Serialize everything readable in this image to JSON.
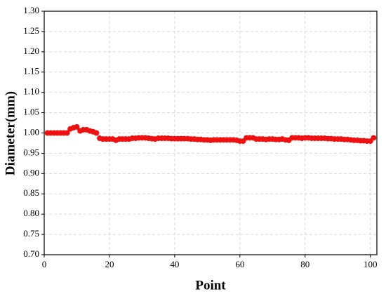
{
  "chart_data": {
    "type": "scatter",
    "x_label": "Point",
    "y_label": "Diameter(mm)",
    "xlim": [
      0,
      102
    ],
    "xticks": [
      0,
      20,
      40,
      60,
      80,
      100
    ],
    "ylim": [
      0.7,
      1.3
    ],
    "yticks": [
      {
        "value": 0.7,
        "label": "0.70"
      },
      0.75,
      {
        "value": 0.8,
        "label": "0.80"
      },
      0.85,
      {
        "value": 0.9,
        "label": "0.90"
      },
      0.95,
      {
        "value": 1.0,
        "label": "1.00"
      },
      1.05,
      {
        "value": 1.1,
        "label": "1.10"
      },
      1.15,
      {
        "value": 1.2,
        "label": "1.20"
      },
      1.25,
      {
        "value": 1.3,
        "label": "1.30"
      }
    ],
    "grid": true,
    "color": "#ee1111",
    "x": [
      1,
      2,
      3,
      4,
      5,
      6,
      7,
      8,
      9,
      10,
      11,
      12,
      13,
      14,
      15,
      16,
      17,
      18,
      19,
      20,
      21,
      22,
      23,
      24,
      25,
      26,
      27,
      28,
      29,
      30,
      31,
      32,
      33,
      34,
      35,
      36,
      37,
      38,
      39,
      40,
      41,
      42,
      43,
      44,
      45,
      46,
      47,
      48,
      49,
      50,
      51,
      52,
      53,
      54,
      55,
      56,
      57,
      58,
      59,
      60,
      61,
      62,
      63,
      64,
      65,
      66,
      67,
      68,
      69,
      70,
      71,
      72,
      73,
      74,
      75,
      76,
      77,
      78,
      79,
      80,
      81,
      82,
      83,
      84,
      85,
      86,
      87,
      88,
      89,
      90,
      91,
      92,
      93,
      94,
      95,
      96,
      97,
      98,
      99,
      100,
      101
    ],
    "values": [
      1.0,
      1.0,
      1.0,
      1.0,
      1.0,
      1.0,
      1.0,
      1.01,
      1.013,
      1.015,
      1.005,
      1.008,
      1.008,
      1.005,
      1.003,
      1.0,
      0.987,
      0.985,
      0.985,
      0.985,
      0.985,
      0.982,
      0.985,
      0.985,
      0.985,
      0.985,
      0.987,
      0.987,
      0.988,
      0.988,
      0.988,
      0.987,
      0.986,
      0.985,
      0.987,
      0.987,
      0.987,
      0.987,
      0.986,
      0.986,
      0.986,
      0.986,
      0.986,
      0.986,
      0.985,
      0.985,
      0.984,
      0.984,
      0.983,
      0.983,
      0.982,
      0.983,
      0.983,
      0.983,
      0.983,
      0.983,
      0.983,
      0.983,
      0.982,
      0.98,
      0.98,
      0.988,
      0.988,
      0.988,
      0.985,
      0.985,
      0.985,
      0.984,
      0.985,
      0.985,
      0.984,
      0.984,
      0.985,
      0.983,
      0.982,
      0.988,
      0.988,
      0.988,
      0.987,
      0.988,
      0.988,
      0.987,
      0.987,
      0.987,
      0.987,
      0.987,
      0.986,
      0.986,
      0.985,
      0.985,
      0.985,
      0.984,
      0.984,
      0.983,
      0.982,
      0.982,
      0.981,
      0.981,
      0.98,
      0.98,
      0.988
    ]
  }
}
